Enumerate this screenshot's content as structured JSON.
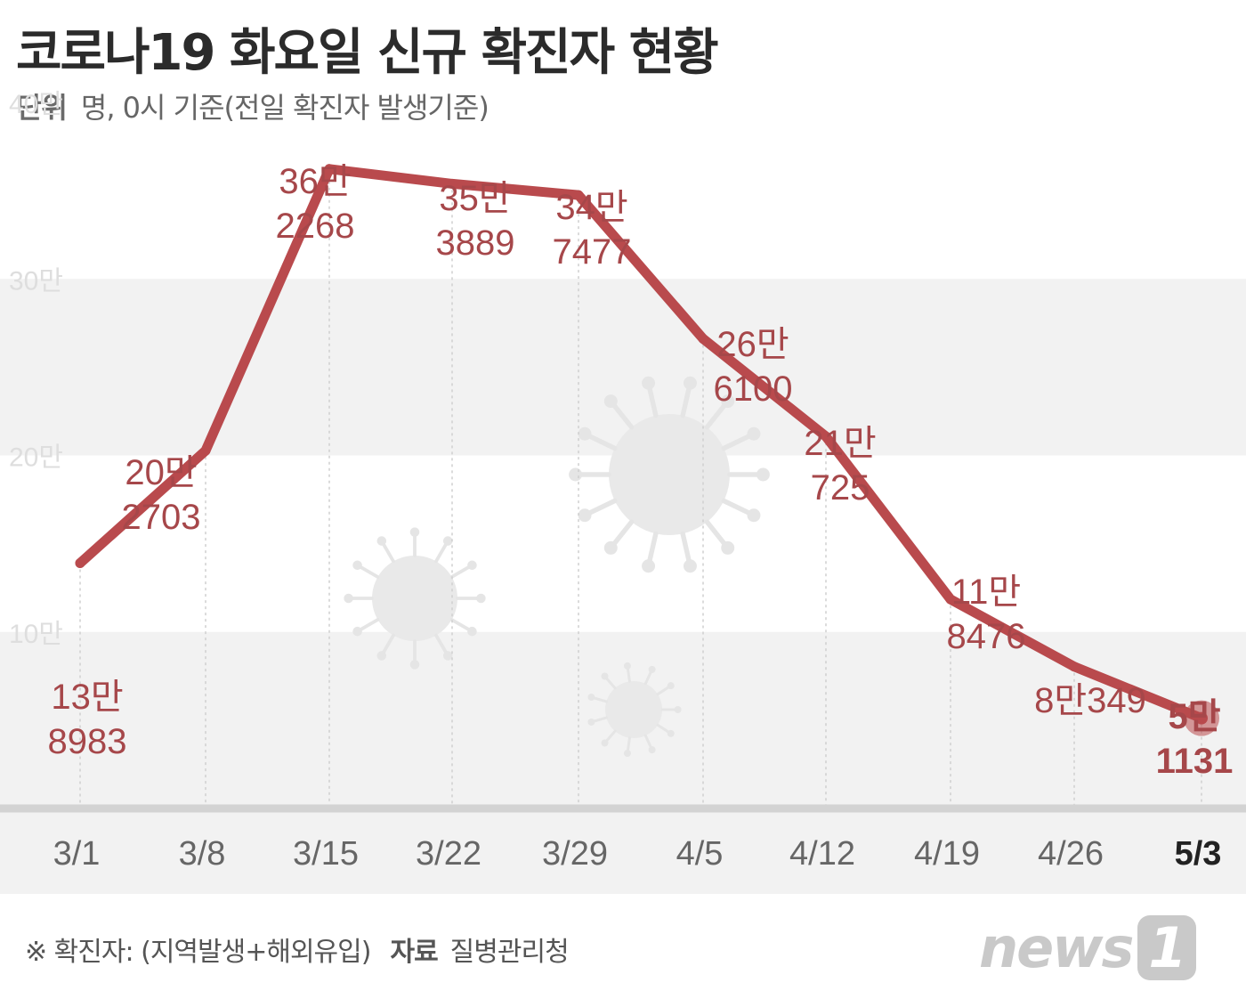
{
  "header": {
    "title": "코로나19 화요일 신규 확진자 현황",
    "unit_label": "단위",
    "unit_text": "명, 0시 기준(전일 확진자 발생기준)"
  },
  "footer": {
    "note": "※ 확진자: (지역발생+해외유입)",
    "source_label": "자료",
    "source": "질병관리청",
    "brand": "news",
    "brand_mark": "1"
  },
  "colors": {
    "line": "#b94a4d",
    "label": "#a6474a",
    "band": "#f2f2f2",
    "axis_text": "#666666",
    "highlight_text": "#222222"
  },
  "chart_data": {
    "type": "line",
    "title": "코로나19 화요일 신규 확진자 현황",
    "xlabel": "",
    "ylabel": "",
    "ylim": [
      0,
      400000
    ],
    "y_ticks": [
      100000,
      200000,
      300000,
      400000
    ],
    "y_tick_labels": [
      "10만",
      "20만",
      "30만",
      "40만"
    ],
    "grid": "alternating horizontal bands",
    "categories": [
      "3/1",
      "3/8",
      "3/15",
      "3/22",
      "3/29",
      "4/5",
      "4/12",
      "4/19",
      "4/26",
      "5/3"
    ],
    "series": [
      {
        "values": [
          138983,
          202703,
          362268,
          353889,
          347477,
          266100,
          210725,
          118476,
          80349,
          51131
        ],
        "labels": [
          [
            "13만",
            "8983"
          ],
          [
            "20만",
            "2703"
          ],
          [
            "36만",
            "2268"
          ],
          [
            "35만",
            "3889"
          ],
          [
            "34만",
            "7477"
          ],
          [
            "26만",
            "6100"
          ],
          [
            "21만",
            "725"
          ],
          [
            "11만",
            "8476"
          ],
          [
            "8만349"
          ],
          [
            "5만",
            "1131"
          ]
        ]
      }
    ],
    "highlight_index": 9
  }
}
